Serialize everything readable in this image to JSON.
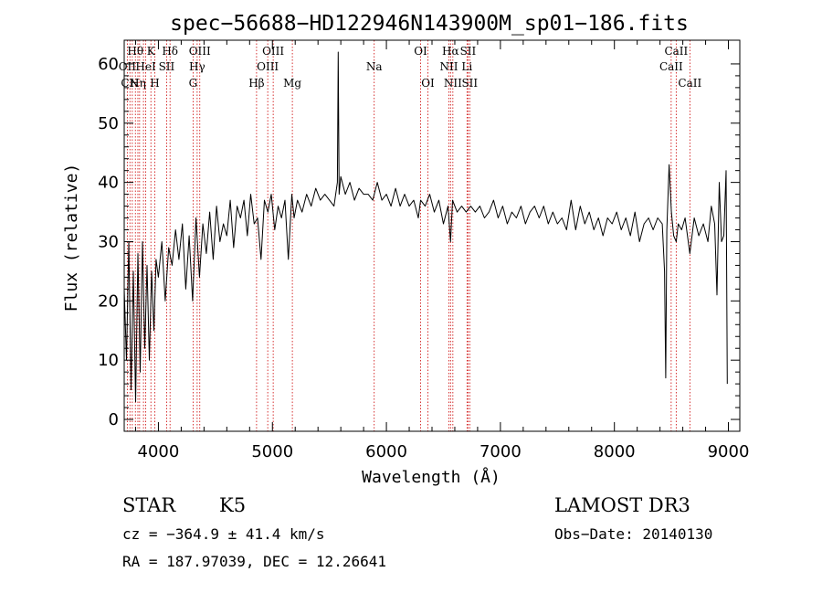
{
  "chart_data": {
    "type": "line",
    "title": "spec−56688−HD122946N143900M_sp01−186.fits",
    "xlabel": "Wavelength (Å)",
    "ylabel": "Flux (relative)",
    "xlim": [
      3700,
      9100
    ],
    "ylim": [
      -2,
      64
    ],
    "xticks": [
      4000,
      5000,
      6000,
      7000,
      8000,
      9000
    ],
    "yticks": [
      0,
      10,
      20,
      30,
      40,
      50,
      60
    ],
    "line_color": "#000000",
    "marker_color": "#cc0000",
    "series": [
      {
        "name": "flux",
        "x": [
          3700,
          3720,
          3740,
          3760,
          3780,
          3800,
          3820,
          3840,
          3860,
          3880,
          3900,
          3920,
          3940,
          3960,
          3980,
          4000,
          4030,
          4060,
          4090,
          4120,
          4150,
          4180,
          4210,
          4240,
          4270,
          4300,
          4330,
          4360,
          4390,
          4420,
          4450,
          4480,
          4510,
          4540,
          4570,
          4600,
          4630,
          4660,
          4690,
          4720,
          4750,
          4780,
          4810,
          4840,
          4870,
          4900,
          4930,
          4960,
          4990,
          5020,
          5050,
          5080,
          5110,
          5140,
          5170,
          5190,
          5220,
          5260,
          5300,
          5340,
          5380,
          5420,
          5460,
          5500,
          5540,
          5570,
          5577,
          5585,
          5600,
          5640,
          5680,
          5720,
          5760,
          5800,
          5840,
          5880,
          5920,
          5960,
          6000,
          6040,
          6080,
          6120,
          6160,
          6200,
          6240,
          6280,
          6300,
          6340,
          6380,
          6420,
          6460,
          6500,
          6540,
          6563,
          6580,
          6620,
          6660,
          6700,
          6740,
          6780,
          6820,
          6860,
          6900,
          6940,
          6980,
          7020,
          7060,
          7100,
          7140,
          7180,
          7220,
          7260,
          7300,
          7340,
          7380,
          7420,
          7460,
          7500,
          7540,
          7580,
          7620,
          7660,
          7700,
          7740,
          7780,
          7820,
          7860,
          7900,
          7940,
          7980,
          8020,
          8060,
          8100,
          8140,
          8180,
          8220,
          8260,
          8300,
          8340,
          8380,
          8420,
          8440,
          8450,
          8460,
          8480,
          8500,
          8520,
          8542,
          8560,
          8590,
          8620,
          8662,
          8700,
          8740,
          8780,
          8820,
          8850,
          8880,
          8900,
          8920,
          8940,
          8960,
          8980,
          8990
        ],
        "y": [
          22,
          10,
          30,
          5,
          25,
          3,
          28,
          8,
          30,
          12,
          26,
          10,
          25,
          15,
          27,
          24,
          30,
          20,
          29,
          26,
          32,
          27,
          33,
          22,
          31,
          20,
          34,
          24,
          33,
          28,
          35,
          27,
          36,
          30,
          33,
          31,
          37,
          29,
          36,
          34,
          37,
          31,
          38,
          33,
          34,
          27,
          37,
          35,
          38,
          32,
          36,
          34,
          37,
          27,
          38,
          34,
          37,
          35,
          38,
          36,
          39,
          37,
          38,
          37,
          36,
          40,
          62,
          38,
          41,
          38,
          40,
          37,
          39,
          38,
          38,
          37,
          40,
          37,
          38,
          36,
          39,
          36,
          38,
          36,
          37,
          34,
          37,
          36,
          38,
          35,
          37,
          33,
          36,
          30,
          37,
          35,
          36,
          35,
          36,
          35,
          36,
          34,
          35,
          37,
          34,
          36,
          33,
          35,
          34,
          36,
          33,
          35,
          36,
          34,
          36,
          33,
          35,
          33,
          34,
          32,
          37,
          32,
          36,
          33,
          35,
          32,
          34,
          31,
          34,
          33,
          35,
          32,
          34,
          31,
          35,
          30,
          33,
          34,
          32,
          34,
          33,
          25,
          7,
          32,
          43,
          35,
          31,
          30,
          33,
          32,
          34,
          28,
          34,
          31,
          33,
          30,
          36,
          33,
          21,
          40,
          30,
          31,
          42,
          6
        ]
      }
    ],
    "line_markers": [
      {
        "wave": 3727,
        "labels": [
          "OII"
        ],
        "row": 1
      },
      {
        "wave": 3750,
        "labels": [
          "CN"
        ],
        "row": 2
      },
      {
        "wave": 3771,
        "labels": [],
        "row": 0
      },
      {
        "wave": 3798,
        "labels": [
          "Hθ"
        ],
        "row": 0
      },
      {
        "wave": 3820,
        "labels": [
          "Hη"
        ],
        "row": 2
      },
      {
        "wave": 3835,
        "labels": [],
        "row": 0
      },
      {
        "wave": 3869,
        "labels": [],
        "row": 0
      },
      {
        "wave": 3889,
        "labels": [
          "HeI"
        ],
        "row": 1
      },
      {
        "wave": 3934,
        "labels": [
          "K"
        ],
        "row": 0
      },
      {
        "wave": 3968,
        "labels": [
          "H"
        ],
        "row": 2
      },
      {
        "wave": 4072,
        "labels": [
          "SII"
        ],
        "row": 1
      },
      {
        "wave": 4102,
        "labels": [
          "Hδ"
        ],
        "row": 0
      },
      {
        "wave": 4304,
        "labels": [
          "G"
        ],
        "row": 2
      },
      {
        "wave": 4340,
        "labels": [
          "Hγ"
        ],
        "row": 1
      },
      {
        "wave": 4363,
        "labels": [
          "OIII"
        ],
        "row": 0
      },
      {
        "wave": 4861,
        "labels": [
          "Hβ"
        ],
        "row": 2
      },
      {
        "wave": 4959,
        "labels": [
          "OIII"
        ],
        "row": 1
      },
      {
        "wave": 5007,
        "labels": [
          "OIII"
        ],
        "row": 0
      },
      {
        "wave": 5175,
        "labels": [
          "Mg"
        ],
        "row": 2
      },
      {
        "wave": 5893,
        "labels": [
          "Na"
        ],
        "row": 1
      },
      {
        "wave": 6300,
        "labels": [
          "OI"
        ],
        "row": 0
      },
      {
        "wave": 6364,
        "labels": [
          "OI"
        ],
        "row": 2
      },
      {
        "wave": 6548,
        "labels": [
          "NII"
        ],
        "row": 1
      },
      {
        "wave": 6563,
        "labels": [
          "Hα"
        ],
        "row": 0
      },
      {
        "wave": 6583,
        "labels": [
          "NII"
        ],
        "row": 2
      },
      {
        "wave": 6707,
        "labels": [
          "Li"
        ],
        "row": 1
      },
      {
        "wave": 6716,
        "labels": [
          "SII"
        ],
        "row": 0
      },
      {
        "wave": 6731,
        "labels": [
          "SII"
        ],
        "row": 2
      },
      {
        "wave": 8498,
        "labels": [
          "CaII"
        ],
        "row": 1
      },
      {
        "wave": 8542,
        "labels": [
          "CaII"
        ],
        "row": 0
      },
      {
        "wave": 8662,
        "labels": [
          "CaII"
        ],
        "row": 2
      }
    ]
  },
  "info": {
    "object_class": "STAR",
    "subclass": "K5",
    "survey": "LAMOST DR3",
    "cz": "cz = −364.9 ± 41.4 km/s",
    "obs_date": "Obs−Date: 20140130",
    "coords": "RA = 187.97039, DEC =  12.26641"
  }
}
